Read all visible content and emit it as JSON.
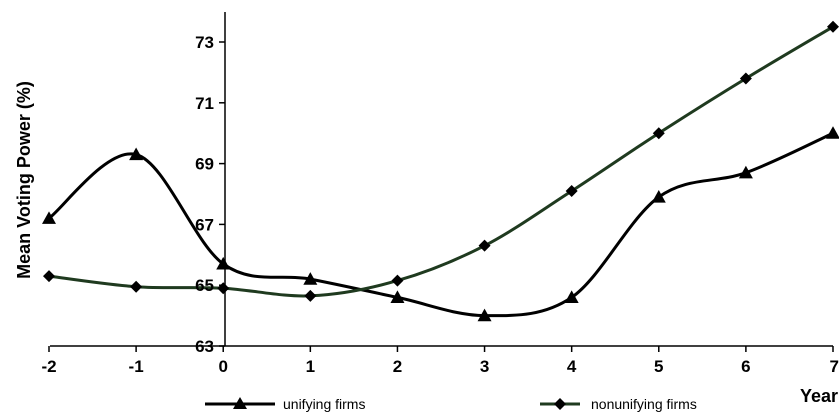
{
  "chart_data": {
    "type": "line",
    "ylabel": "Mean Voting Power (%)",
    "xlabel": "Year",
    "x": [
      -2,
      -1,
      0,
      1,
      2,
      3,
      4,
      5,
      6,
      7
    ],
    "xlim": [
      -2,
      7
    ],
    "ylim": [
      63,
      74
    ],
    "yticks": [
      63,
      65,
      67,
      69,
      71,
      73
    ],
    "grid": false,
    "legend_position": "bottom",
    "series": [
      {
        "name": "unifying firms",
        "marker": "triangle",
        "color": "#000000",
        "values": [
          67.2,
          69.3,
          65.7,
          65.2,
          64.6,
          64.0,
          64.6,
          67.9,
          68.7,
          70.0
        ]
      },
      {
        "name": "nonunifying firms",
        "marker": "diamond",
        "color": "#1f3a1f",
        "values": [
          65.3,
          64.95,
          64.9,
          64.65,
          65.15,
          66.3,
          68.1,
          70.0,
          71.8,
          73.5
        ]
      }
    ]
  }
}
